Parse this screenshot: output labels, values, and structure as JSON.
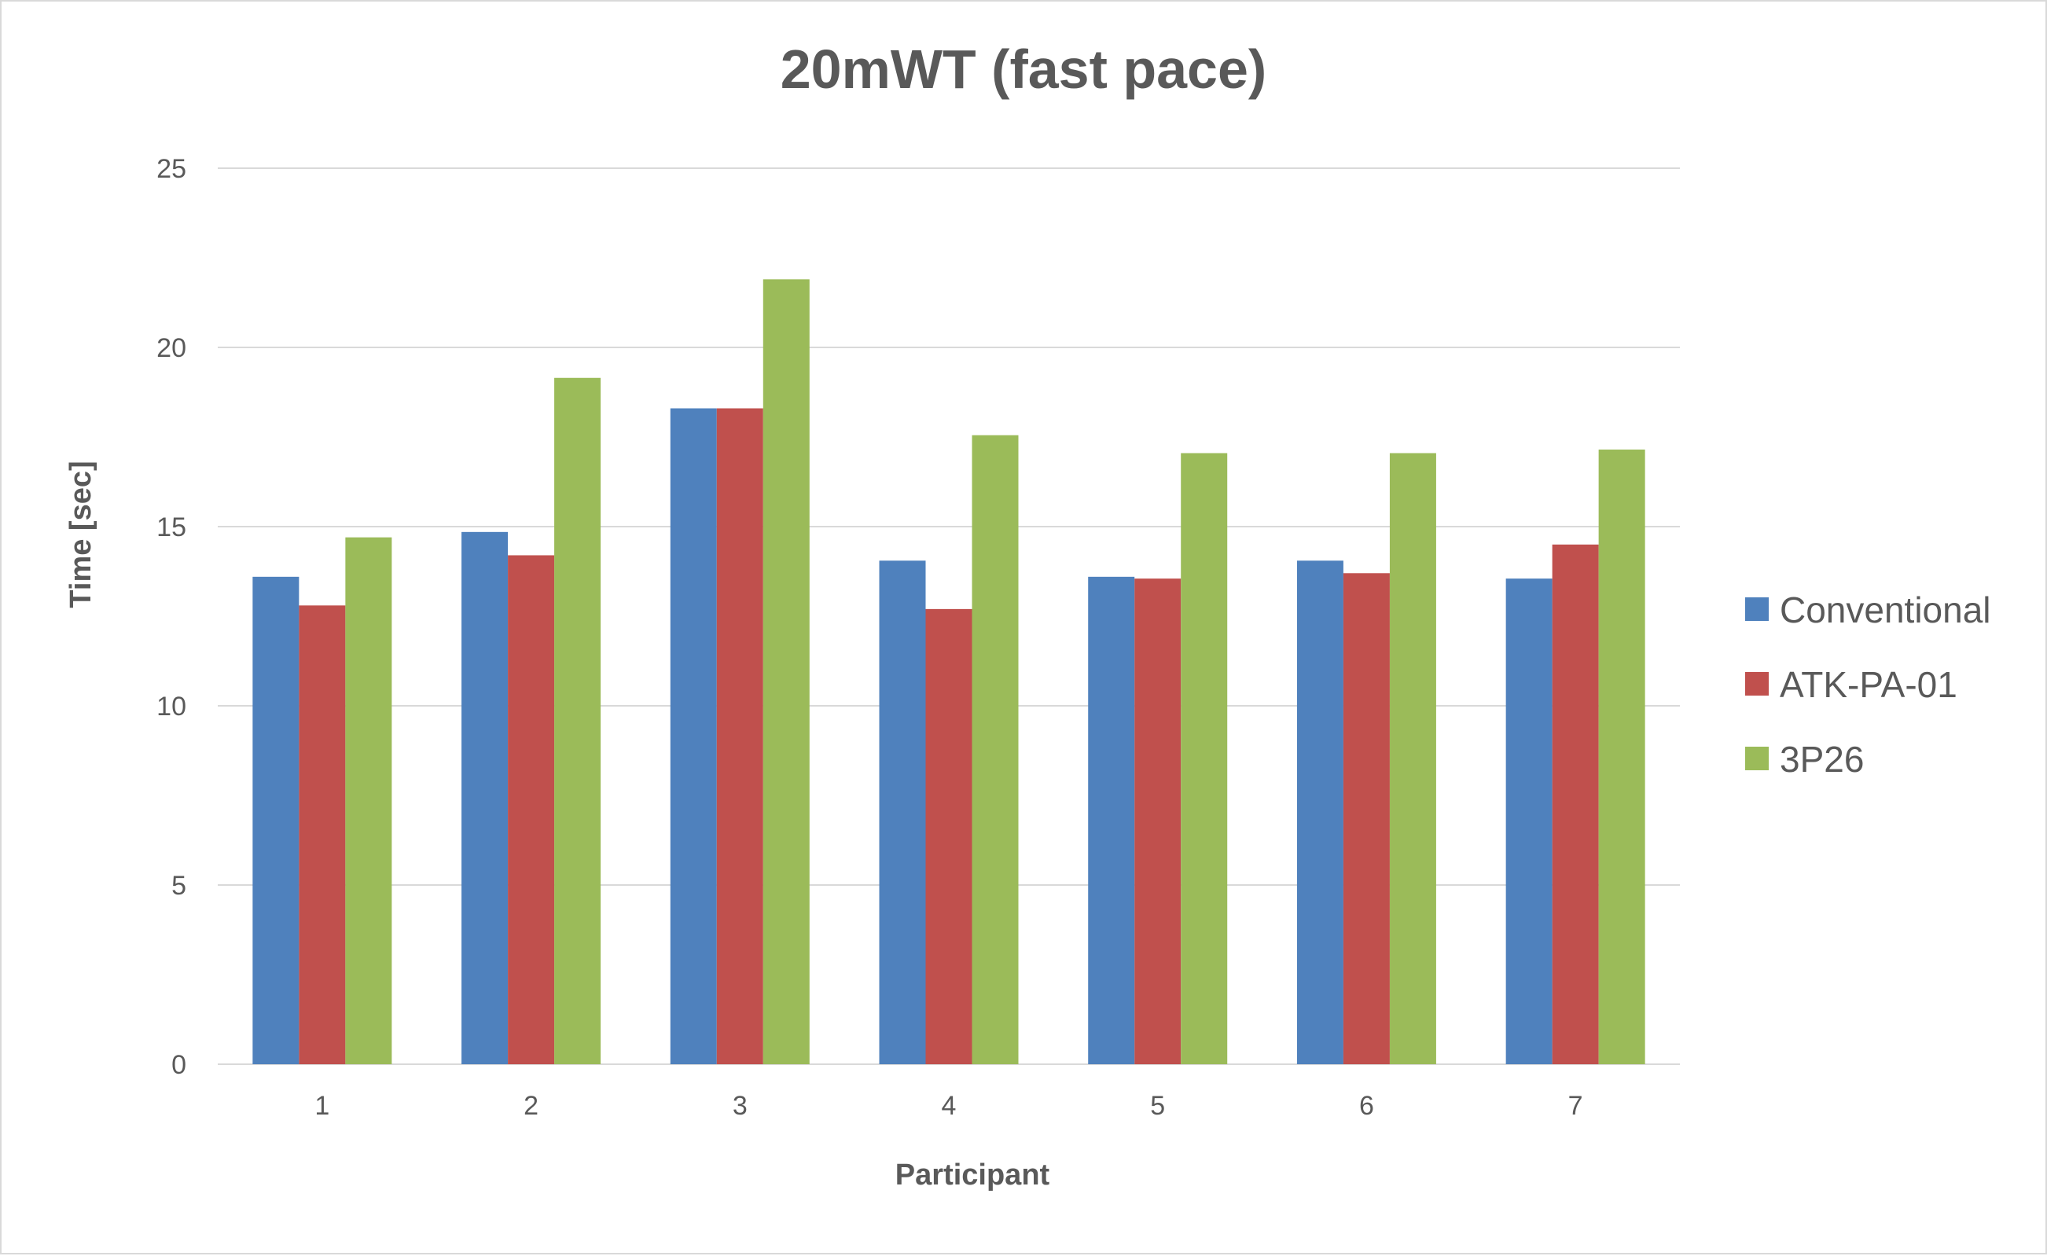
{
  "chart_data": {
    "type": "bar",
    "title": "20mWT (fast pace)",
    "xlabel": "Participant",
    "ylabel": "Time [sec]",
    "categories": [
      "1",
      "2",
      "3",
      "4",
      "5",
      "6",
      "7"
    ],
    "ylim": [
      0,
      25
    ],
    "yticks": [
      0,
      5,
      10,
      15,
      20,
      25
    ],
    "grid": true,
    "legend_position": "right",
    "series": [
      {
        "name": "Conventional",
        "color": "#4f81bd",
        "values": [
          13.6,
          14.85,
          18.3,
          14.05,
          13.6,
          14.05,
          13.55
        ]
      },
      {
        "name": "ATK-PA-01",
        "color": "#c0504d",
        "values": [
          12.8,
          14.2,
          18.3,
          12.7,
          13.55,
          13.7,
          14.5
        ]
      },
      {
        "name": "3P26",
        "color": "#9bbb59",
        "values": [
          14.7,
          19.15,
          21.9,
          17.55,
          17.05,
          17.05,
          17.15
        ]
      }
    ],
    "colors": {
      "gridline": "#d9d9d9",
      "text": "#595959"
    }
  }
}
